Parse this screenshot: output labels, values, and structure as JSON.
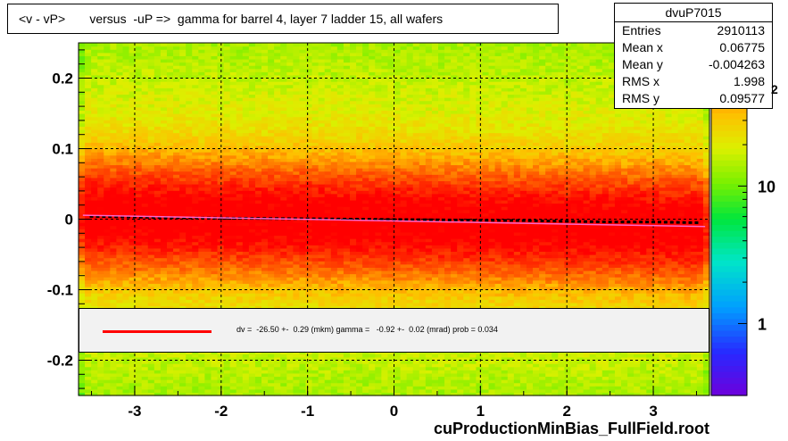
{
  "title": "<v - vP>       versus  -uP =>  gamma for barrel 4, layer 7 ladder 15, all wafers",
  "stats": {
    "name": "dvuP7015",
    "rows": [
      {
        "key": "Entries",
        "value": "2910113"
      },
      {
        "key": "Mean x",
        "value": "0.06775"
      },
      {
        "key": "Mean y",
        "value": "-0.004263"
      },
      {
        "key": "RMS x",
        "value": "1.998"
      },
      {
        "key": "RMS y",
        "value": "0.09577"
      }
    ]
  },
  "legend": {
    "text": "dv =  -26.50 +-  0.29 (mkm) gamma =   -0.92 +-  0.02 (mrad) prob = 0.034",
    "line_color": "#ff0000"
  },
  "footer": "cuProductionMinBias_FullField.root",
  "colorbar": {
    "labels": [
      {
        "text": "1",
        "value": 1
      },
      {
        "text": "10",
        "value": 10
      }
    ],
    "min": 0.3,
    "max": 110,
    "exponent_fragment": "2"
  },
  "colors": {
    "red": "#ff0000",
    "black": "#000000",
    "grid": "#000000",
    "fit_pink": "#ff66cc"
  },
  "chart_data": {
    "type": "heatmap",
    "title": "<v - vP>       versus  -uP =>  gamma for barrel 4, layer 7 ladder 15, all wafers",
    "xlabel": "",
    "ylabel": "",
    "xlim": [
      -3.65,
      3.65
    ],
    "ylim": [
      -0.25,
      0.25
    ],
    "x_ticks": [
      {
        "text": "-3",
        "value": -3
      },
      {
        "text": "-2",
        "value": -2
      },
      {
        "text": "-1",
        "value": -1
      },
      {
        "text": "0",
        "value": 0
      },
      {
        "text": "1",
        "value": 1
      },
      {
        "text": "2",
        "value": 2
      },
      {
        "text": "3",
        "value": 3
      }
    ],
    "y_ticks": [
      {
        "text": "0.2",
        "value": 0.2
      },
      {
        "text": "0.1",
        "value": 0.1
      },
      {
        "text": "0",
        "value": 0
      },
      {
        "text": "-0.1",
        "value": -0.1
      },
      {
        "text": "-0.2",
        "value": -0.2
      }
    ],
    "grid": true,
    "z_scale": "log",
    "density": {
      "sigma_core": 0.045,
      "peak": 100,
      "background": 12
    },
    "profile": {
      "x": [
        -3.5,
        -3.0,
        -2.5,
        -2.0,
        -1.5,
        -1.0,
        -0.5,
        0.0,
        0.5,
        1.0,
        1.5,
        2.0,
        2.5,
        3.0,
        3.5
      ],
      "y": [
        0.004,
        0.003,
        0.002,
        0.0015,
        0.001,
        0.0005,
        0.0,
        -0.0005,
        -0.001,
        -0.0015,
        -0.002,
        -0.003,
        -0.004,
        -0.004,
        -0.005
      ]
    },
    "fit_line": {
      "x": [
        -3.6,
        3.6
      ],
      "y": [
        0.0055,
        -0.0105
      ]
    }
  }
}
